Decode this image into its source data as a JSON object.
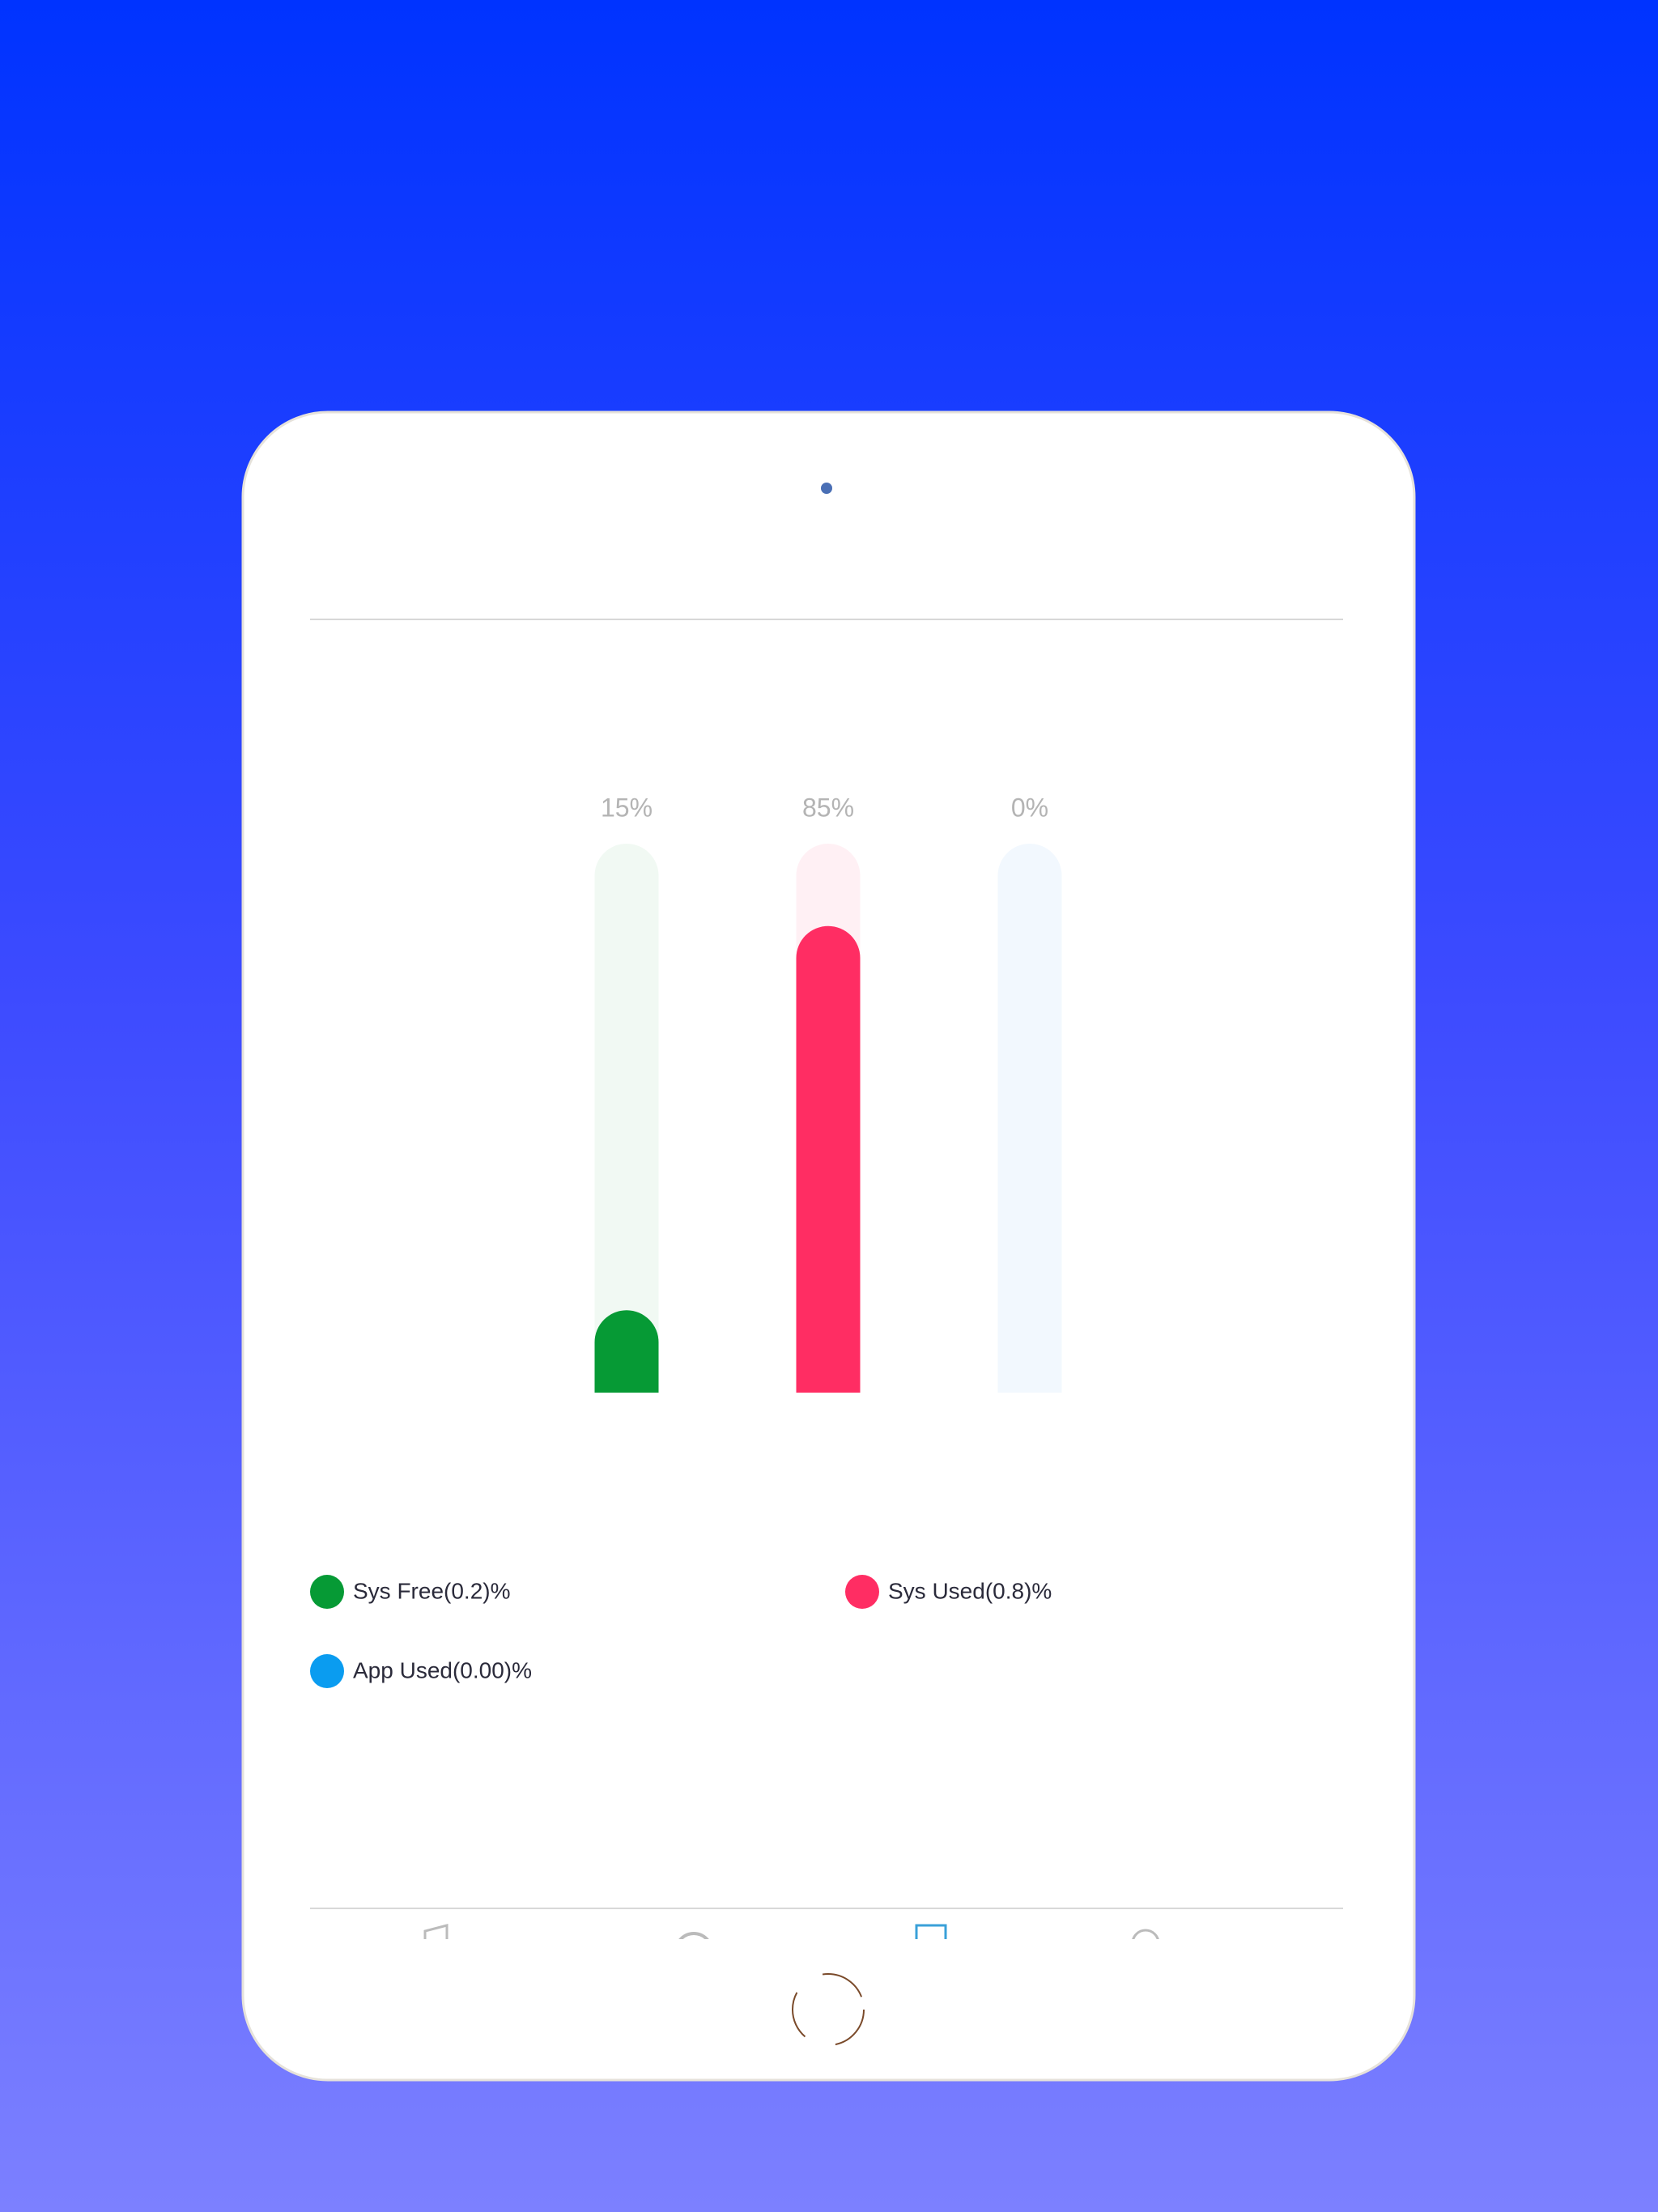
{
  "chart_data": {
    "type": "bar",
    "values": [
      15,
      85,
      0
    ],
    "value_labels": [
      "15%",
      "85%",
      "0%"
    ],
    "colors": [
      "#069a35",
      "#ff2d63",
      "#0a9cf0"
    ],
    "track_colors": [
      "#f1f9f3",
      "#fff0f4",
      "#f2f8fe"
    ],
    "legend": [
      "Sys Free(0.2)%",
      "Sys Used(0.8)%",
      "App Used(0.00)%"
    ],
    "ylim": [
      0,
      100
    ]
  }
}
